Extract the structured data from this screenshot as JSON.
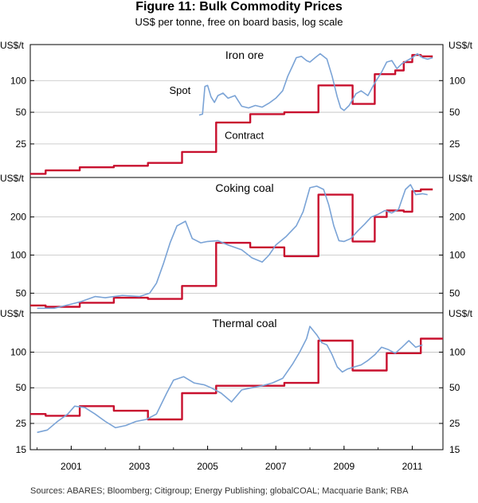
{
  "title": "Figure 11: Bulk Commodity Prices",
  "subtitle": "US$ per tonne, free on board basis, log scale",
  "source": "Sources:  ABARES; Bloomberg; Citigroup; Energy Publishing; globalCOAL; Macquarie Bank; RBA",
  "colors": {
    "spot": "#7aa3d6",
    "contract": "#c8102e"
  },
  "chart_data": {
    "type": "line",
    "x_axis": {
      "range": [
        1999.8,
        2011.9
      ],
      "ticks": [
        2001,
        2003,
        2005,
        2007,
        2009,
        2011
      ],
      "tick_labels": [
        "2001",
        "2003",
        "2005",
        "2007",
        "2009",
        "2011"
      ]
    },
    "panels": [
      {
        "title": "Iron ore",
        "ylabel_left": "US$/t",
        "ylabel_right": "US$/t",
        "scale": "log",
        "ylim": [
          12,
          220
        ],
        "yticks": [
          25,
          50,
          100
        ],
        "yticks_right": [
          25,
          50,
          100
        ],
        "annotations": [
          {
            "text": "Spot",
            "series": "spot",
            "x": 2004.5,
            "y": 75
          },
          {
            "text": "Contract",
            "series": "contract",
            "x": 2005.5,
            "y": 28
          }
        ],
        "series": [
          {
            "name": "Contract",
            "key": "contract",
            "style": "step",
            "x": [
              1999.8,
              2000.25,
              2001.25,
              2002.25,
              2003.25,
              2004.25,
              2005.25,
              2006.25,
              2007.25,
              2008.25,
              2009.25,
              2009.9,
              2010.5,
              2010.75,
              2011.0,
              2011.25,
              2011.6
            ],
            "y": [
              13,
              14,
              15,
              15.5,
              16.5,
              21,
              40,
              48,
              50,
              90,
              60,
              115,
              125,
              150,
              175,
              170,
              170
            ]
          },
          {
            "name": "Spot",
            "key": "spot",
            "style": "line",
            "x": [
              2004.75,
              2004.85,
              2004.92,
              2005.0,
              2005.1,
              2005.2,
              2005.3,
              2005.45,
              2005.6,
              2005.8,
              2006.0,
              2006.2,
              2006.4,
              2006.6,
              2006.8,
              2007.0,
              2007.2,
              2007.35,
              2007.5,
              2007.6,
              2007.75,
              2007.9,
              2008.0,
              2008.15,
              2008.3,
              2008.5,
              2008.65,
              2008.8,
              2008.9,
              2009.0,
              2009.15,
              2009.35,
              2009.5,
              2009.7,
              2009.9,
              2010.1,
              2010.25,
              2010.4,
              2010.55,
              2010.7,
              2010.85,
              2011.0,
              2011.15,
              2011.3,
              2011.45,
              2011.6
            ],
            "y": [
              47,
              48,
              88,
              90,
              70,
              62,
              72,
              76,
              68,
              72,
              57,
              55,
              58,
              56,
              61,
              68,
              80,
              110,
              140,
              165,
              170,
              155,
              150,
              165,
              180,
              160,
              110,
              70,
              55,
              52,
              58,
              75,
              80,
              72,
              95,
              120,
              150,
              155,
              130,
              145,
              155,
              165,
              180,
              165,
              160,
              165
            ]
          }
        ]
      },
      {
        "title": "Coking coal",
        "ylabel_left": "US$/t",
        "ylabel_right": "US$/t",
        "scale": "log",
        "ylim": [
          35,
          410
        ],
        "yticks": [
          50,
          100,
          200
        ],
        "yticks_right": [
          50,
          100,
          200
        ],
        "series": [
          {
            "name": "Contract",
            "key": "contract",
            "style": "step",
            "x": [
              1999.8,
              2000.25,
              2001.25,
              2002.25,
              2003.25,
              2004.25,
              2005.25,
              2006.25,
              2007.25,
              2008.25,
              2009.25,
              2009.9,
              2010.25,
              2010.5,
              2010.75,
              2011.0,
              2011.25,
              2011.6
            ],
            "y": [
              40,
              39,
              42,
              46,
              45,
              57,
              125,
              115,
              98,
              300,
              128,
              200,
              225,
              225,
              220,
              320,
              330,
              315
            ]
          },
          {
            "name": "Spot",
            "key": "spot",
            "style": "line",
            "x": [
              2000.0,
              2000.5,
              2001.0,
              2001.3,
              2001.7,
              2002.0,
              2002.5,
              2003.0,
              2003.3,
              2003.5,
              2003.7,
              2003.9,
              2004.1,
              2004.35,
              2004.55,
              2004.8,
              2005.0,
              2005.3,
              2005.6,
              2006.0,
              2006.3,
              2006.6,
              2006.8,
              2007.0,
              2007.3,
              2007.6,
              2007.8,
              2008.0,
              2008.2,
              2008.4,
              2008.55,
              2008.7,
              2008.85,
              2009.0,
              2009.2,
              2009.4,
              2009.6,
              2009.8,
              2010.0,
              2010.2,
              2010.4,
              2010.6,
              2010.8,
              2010.95,
              2011.1,
              2011.3,
              2011.45
            ],
            "y": [
              38,
              38,
              41,
              43,
              47,
              46,
              48,
              47,
              50,
              60,
              85,
              125,
              170,
              185,
              135,
              125,
              128,
              130,
              120,
              110,
              95,
              88,
              100,
              120,
              140,
              170,
              220,
              340,
              350,
              330,
              250,
              170,
              130,
              128,
              135,
              155,
              175,
              200,
              210,
              225,
              215,
              230,
              330,
              360,
              300,
              305,
              300
            ]
          }
        ]
      },
      {
        "title": "Thermal coal",
        "ylabel_left": "US$/t",
        "ylabel_right": "US$/t",
        "scale": "log",
        "ylim": [
          15,
          215
        ],
        "yticks": [
          15,
          25,
          50,
          100
        ],
        "yticks_right": [
          15,
          25,
          50,
          100
        ],
        "series": [
          {
            "name": "Contract",
            "key": "contract",
            "style": "step",
            "x": [
              1999.8,
              2000.25,
              2001.25,
              2002.25,
              2003.25,
              2004.25,
              2005.25,
              2006.25,
              2007.25,
              2008.25,
              2009.25,
              2010.25,
              2011.25,
              2011.9
            ],
            "y": [
              30,
              29,
              35,
              32,
              27,
              45,
              52,
              52,
              55,
              125,
              70,
              98,
              130,
              130
            ]
          },
          {
            "name": "Spot",
            "key": "spot",
            "style": "line",
            "x": [
              2000.0,
              2000.3,
              2000.6,
              2000.9,
              2001.1,
              2001.4,
              2001.7,
              2002.0,
              2002.3,
              2002.6,
              2002.9,
              2003.2,
              2003.5,
              2003.8,
              2004.0,
              2004.3,
              2004.6,
              2004.9,
              2005.1,
              2005.4,
              2005.7,
              2006.0,
              2006.3,
              2006.6,
              2006.9,
              2007.2,
              2007.5,
              2007.7,
              2007.9,
              2008.0,
              2008.2,
              2008.35,
              2008.5,
              2008.65,
              2008.8,
              2008.95,
              2009.1,
              2009.3,
              2009.5,
              2009.7,
              2009.9,
              2010.1,
              2010.3,
              2010.5,
              2010.7,
              2010.9,
              2011.1,
              2011.3
            ],
            "y": [
              21,
              22,
              26,
              30,
              35,
              34,
              30,
              26,
              23,
              24,
              26,
              27,
              30,
              45,
              58,
              62,
              55,
              53,
              50,
              45,
              38,
              48,
              50,
              52,
              55,
              60,
              80,
              100,
              130,
              165,
              140,
              120,
              115,
              95,
              75,
              68,
              72,
              75,
              78,
              85,
              95,
              110,
              105,
              98,
              110,
              125,
              110,
              115
            ]
          }
        ]
      }
    ]
  }
}
